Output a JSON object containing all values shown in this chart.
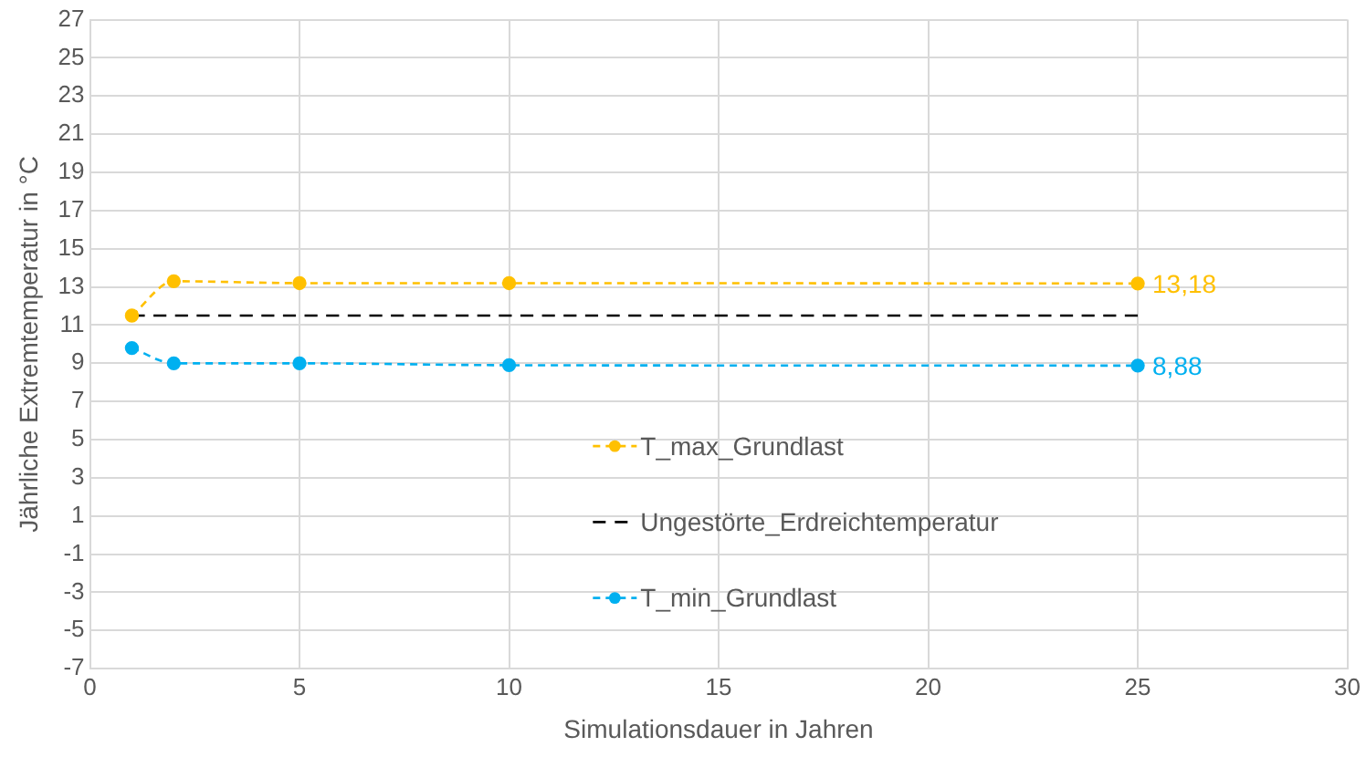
{
  "chart_data": {
    "type": "line",
    "xlabel": "Simulationsdauer in Jahren",
    "ylabel": "Jährliche Extremtemperatur in °C",
    "xlim": [
      0,
      30
    ],
    "xticks": [
      0,
      5,
      10,
      15,
      20,
      25,
      30
    ],
    "ylim": [
      -7,
      27
    ],
    "yticks": [
      -7,
      -5,
      -3,
      -1,
      1,
      3,
      5,
      7,
      9,
      11,
      13,
      15,
      17,
      19,
      21,
      23,
      25,
      27
    ],
    "grid": true,
    "legend": "center",
    "line_style": "dashed",
    "series": [
      {
        "name": "T_max_Grundlast",
        "color": "#ffc000",
        "marker": "circle",
        "x": [
          1,
          2,
          5,
          10,
          25
        ],
        "values": [
          11.5,
          13.3,
          13.2,
          13.2,
          13.18
        ],
        "value_labels": [
          null,
          null,
          null,
          null,
          "13,18"
        ]
      },
      {
        "name": "Ungestörte_Erdreichtemperatur",
        "color": "#000000",
        "marker": "none",
        "x": [
          1,
          25
        ],
        "values": [
          11.5,
          11.5
        ]
      },
      {
        "name": "T_min_Grundlast",
        "color": "#00b0f0",
        "marker": "circle",
        "x": [
          1,
          2,
          5,
          10,
          25
        ],
        "values": [
          9.8,
          9.0,
          9.0,
          8.9,
          8.88
        ],
        "value_labels": [
          null,
          null,
          null,
          null,
          "8,88"
        ]
      }
    ]
  }
}
